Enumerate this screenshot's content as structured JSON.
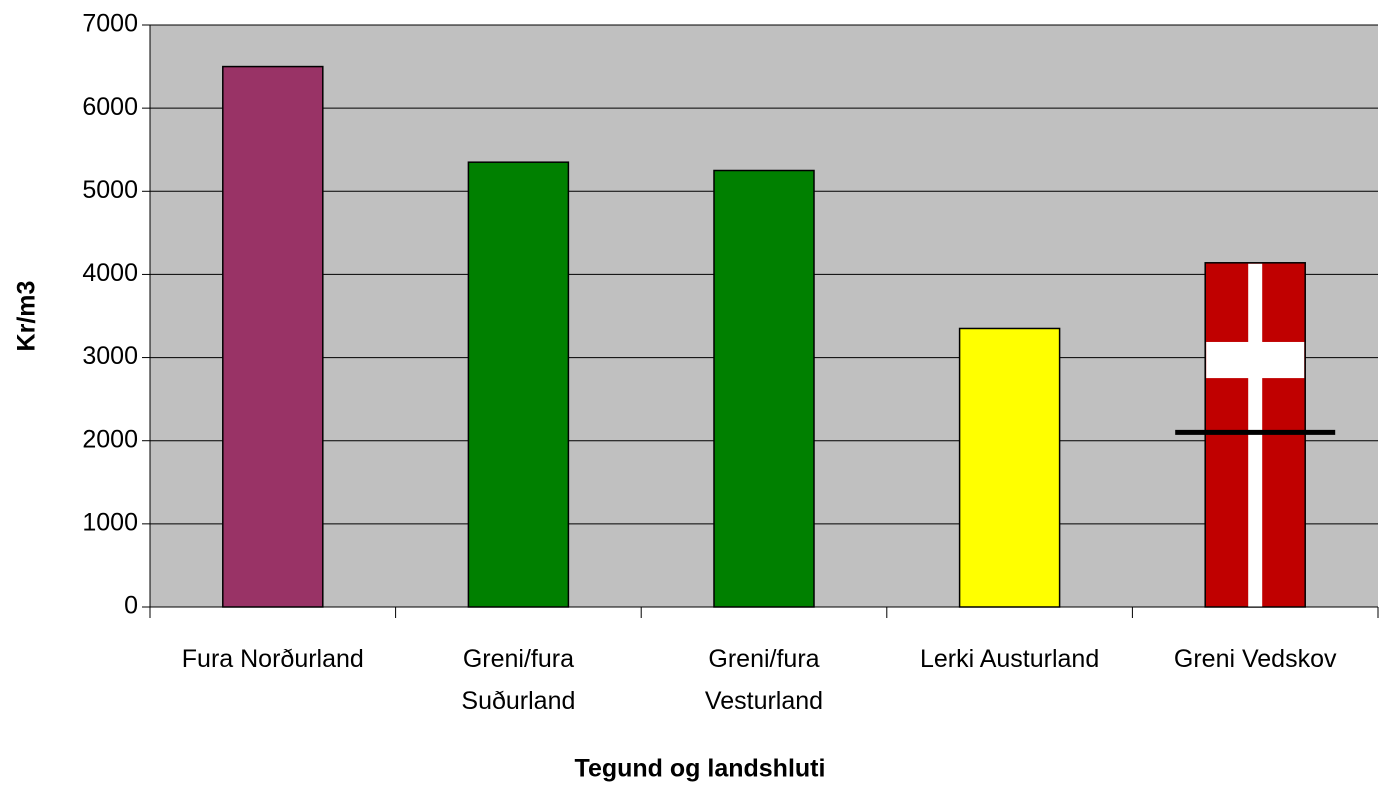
{
  "chart_data": {
    "type": "bar",
    "categories": [
      "Fura Norðurland",
      "Greni/fura\nSuðurland",
      "Greni/fura\nVesturland",
      "Lerki Austurland",
      "Greni Vedskov"
    ],
    "values": [
      6500,
      5350,
      5250,
      3350,
      4140
    ],
    "colors": [
      "#993366",
      "#008000",
      "#008000",
      "#ffff00",
      "#c00000"
    ],
    "patterns": [
      null,
      null,
      null,
      null,
      "danish-flag"
    ],
    "marker": {
      "category": 4,
      "value": 2100
    },
    "ylim": [
      0,
      7000
    ],
    "yticks": [
      0,
      1000,
      2000,
      3000,
      4000,
      5000,
      6000,
      7000
    ],
    "grid": true,
    "y_label": "Kr/m3",
    "x_label": "Tegund og landshluti"
  }
}
